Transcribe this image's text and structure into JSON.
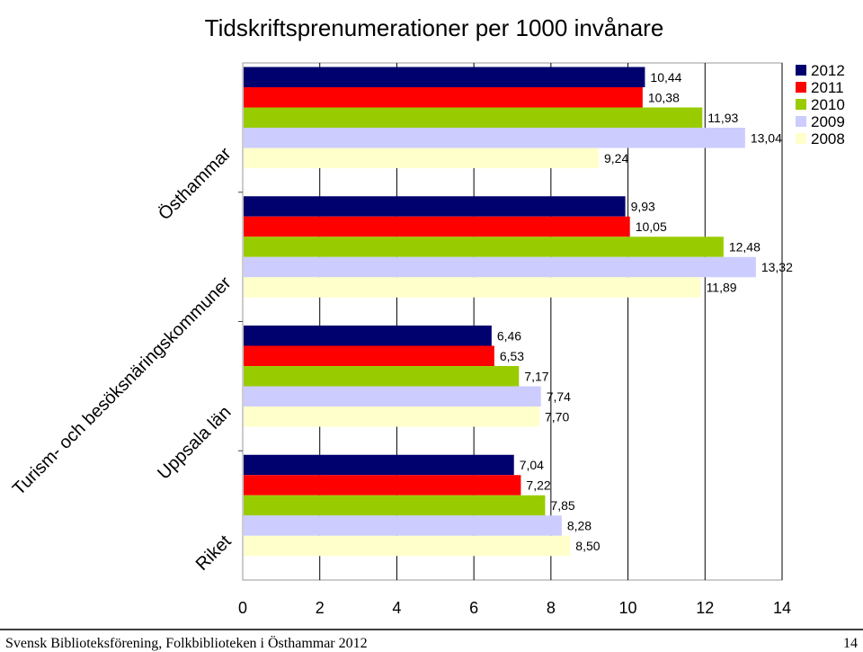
{
  "chart_data": {
    "type": "bar",
    "orientation": "horizontal",
    "title": "Tidskriftsprenumerationer per 1000 invånare",
    "categories": [
      "Östhammar",
      "Turism- och besöksnäringskommuner",
      "Uppsala län",
      "Riket"
    ],
    "series": [
      {
        "name": "2012",
        "color": "#00006E",
        "values": [
          10.44,
          9.93,
          6.46,
          7.04
        ],
        "labels": [
          "10,44",
          "9,93",
          "6,46",
          "7,04"
        ]
      },
      {
        "name": "2011",
        "color": "#FF0000",
        "values": [
          10.38,
          10.05,
          6.53,
          7.22
        ],
        "labels": [
          "10,38",
          "10,05",
          "6,53",
          "7,22"
        ]
      },
      {
        "name": "2010",
        "color": "#99CC00",
        "values": [
          11.93,
          12.48,
          7.17,
          7.85
        ],
        "labels": [
          "11,93",
          "12,48",
          "7,17",
          "7,85"
        ]
      },
      {
        "name": "2009",
        "color": "#CCCCFF",
        "values": [
          13.04,
          13.32,
          7.74,
          8.28
        ],
        "labels": [
          "13,04",
          "13,32",
          "7,74",
          "8,28"
        ]
      },
      {
        "name": "2008",
        "color": "#FFFFCC",
        "values": [
          9.24,
          11.89,
          7.7,
          8.5
        ],
        "labels": [
          "9,24",
          "11,89",
          "7,70",
          "8,50"
        ]
      }
    ],
    "xlim": [
      0,
      14
    ],
    "xticks": [
      0,
      2,
      4,
      6,
      8,
      10,
      12,
      14
    ],
    "gridlines": true,
    "legend_position": "top-right"
  },
  "footer": {
    "left": "Svensk Biblioteksförening, Folkbiblioteken i Östhammar 2012",
    "right": "14"
  }
}
